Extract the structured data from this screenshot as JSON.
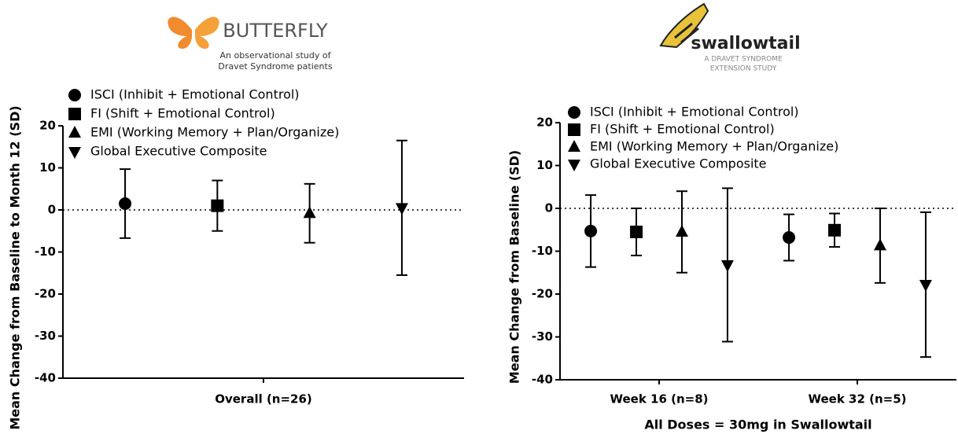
{
  "chart_data": [
    {
      "type": "errorbar",
      "title": "BUTTERFLY",
      "subtitle": [
        "An observational study of",
        "Dravet Syndrome patients"
      ],
      "y_label": "Mean Change from Baseline to Month 12 (SD)",
      "categories": [
        "Overall (n=26)"
      ],
      "series": [
        {
          "name": "ISCI (Inhibit + Emotional Control)",
          "marker": "circle",
          "color": "#000000",
          "values": [
            1.5
          ],
          "errors": [
            8.2
          ]
        },
        {
          "name": "FI (Shift + Emotional Control)",
          "marker": "square",
          "color": "#000000",
          "values": [
            1.0
          ],
          "errors": [
            6.0
          ]
        },
        {
          "name": "EMI (Working Memory + Plan/Organize)",
          "marker": "triangle",
          "color": "#000000",
          "values": [
            -0.8
          ],
          "errors": [
            7.0
          ]
        },
        {
          "name": "Global Executive Composite",
          "marker": "triangle-down",
          "color": "#000000",
          "values": [
            0.5
          ],
          "errors": [
            16.0
          ]
        }
      ],
      "ylim": [
        -40,
        20
      ],
      "yticks": [
        -40,
        -30,
        -20,
        -10,
        0,
        10,
        20
      ],
      "zero_line": true,
      "legend": "upper left"
    },
    {
      "type": "errorbar",
      "title": "swallowtail",
      "subtitle": [
        "A DRAVET SYNDROME",
        "EXTENSION STUDY"
      ],
      "y_label": "Mean Change from Baseline (SD)",
      "x_label": "All Doses = 30mg in Swallowtail",
      "categories": [
        "Week 16 (n=8)",
        "Week 32 (n=5)"
      ],
      "series": [
        {
          "name": "ISCI (Inhibit + Emotional Control)",
          "marker": "circle",
          "color": "#000000",
          "values": [
            -5.3,
            -6.8
          ],
          "errors": [
            8.4,
            5.4
          ]
        },
        {
          "name": "FI (Shift + Emotional Control)",
          "marker": "square",
          "color": "#000000",
          "values": [
            -5.5,
            -5.1
          ],
          "errors": [
            5.5,
            3.9
          ]
        },
        {
          "name": "EMI (Working Memory + Plan/Organize)",
          "marker": "triangle",
          "color": "#000000",
          "values": [
            -5.5,
            -8.7
          ],
          "errors": [
            9.5,
            8.7
          ]
        },
        {
          "name": "Global Executive Composite",
          "marker": "triangle-down",
          "color": "#000000",
          "values": [
            -13.2,
            -17.8
          ],
          "errors": [
            17.9,
            16.9
          ]
        }
      ],
      "ylim": [
        -40,
        20
      ],
      "yticks": [
        -40,
        -30,
        -20,
        -10,
        0,
        10,
        20
      ],
      "zero_line": true,
      "legend": "upper left"
    }
  ]
}
